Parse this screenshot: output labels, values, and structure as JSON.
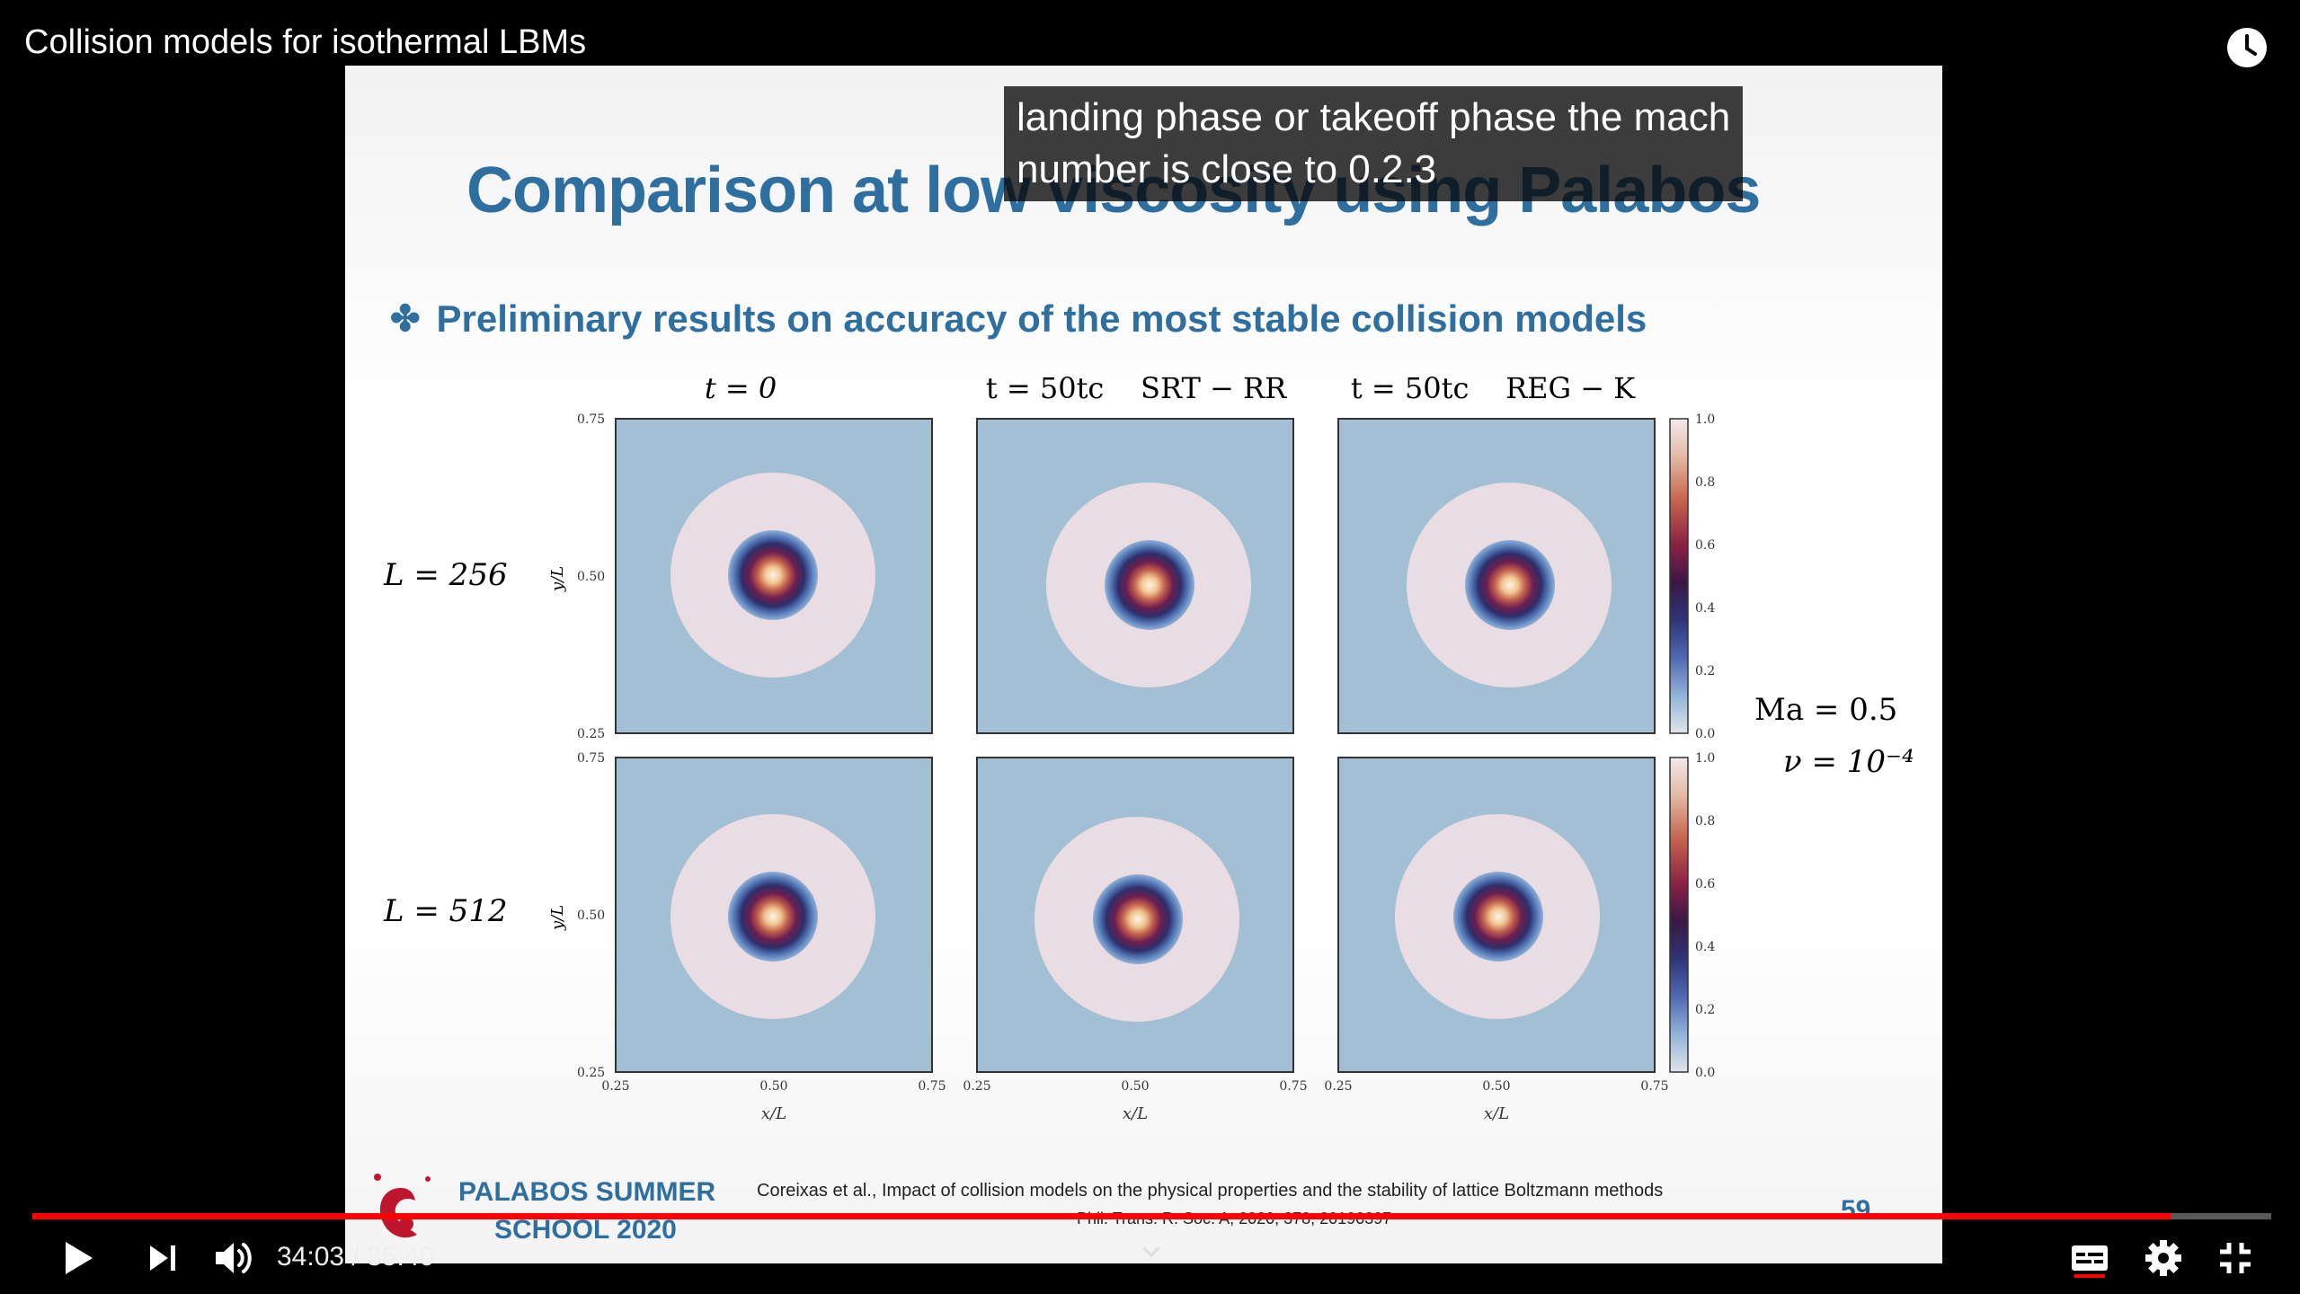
{
  "video": {
    "title": "Collision models for isothermal LBMs",
    "current_time": "34:03",
    "duration": "35:40",
    "time_display": "34:03 / 35:40",
    "progress": 0.955,
    "captions_on": true
  },
  "caption": {
    "line1": "landing phase or takeoff phase the mach",
    "line2": "number is close to 0.2.3"
  },
  "slide": {
    "title": "Comparison at low viscosity using Palabos",
    "bullet": "Preliminary results on accuracy of the most stable collision models",
    "column_headers": [
      "t = 0",
      "t = 50tc    SRT − RR",
      "t = 50tc    REG − K"
    ],
    "row_labels": [
      "L = 256",
      "L = 512"
    ],
    "y_axis_label": "y/L",
    "x_axis_label": "x/L",
    "x_ticks": [
      "0.25",
      "0.50",
      "0.75"
    ],
    "y_ticks": [
      "0.75",
      "0.50",
      "0.25"
    ],
    "colorbar_ticks": [
      "1.0",
      "0.8",
      "0.6",
      "0.4",
      "0.2",
      "0.0"
    ],
    "params": [
      "Ma = 0.5",
      "ν = 10⁻⁴"
    ],
    "school_line1": "PALABOS SUMMER",
    "school_line2": "SCHOOL 2020",
    "reference_line1": "Coreixas et al., Impact of collision models on the physical properties and the stability of lattice Boltzmann methods",
    "reference_line2": "Phil. Trans. R. Soc. A, 2020, 378, 20190397",
    "page_number": "59"
  },
  "colors": {
    "progress": "#ff0000",
    "slide_title": "#2e6f9f",
    "field_background": "#a3bfd3",
    "ring": "#e9dde3"
  },
  "icons": {
    "watch_later": "clock-icon",
    "play": "play-icon",
    "next": "next-icon",
    "volume": "volume-icon",
    "subtitles": "subtitles-icon",
    "settings": "gear-icon",
    "fullscreen_exit": "exit-fullscreen-icon",
    "chevron": "chevron-down-icon"
  }
}
